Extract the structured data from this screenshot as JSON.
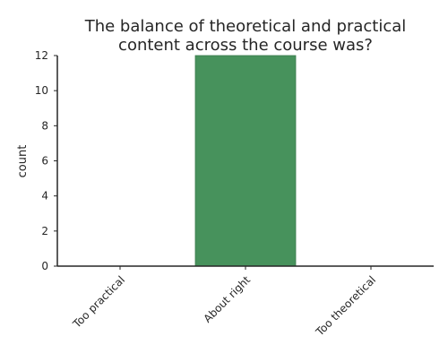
{
  "chart_data": {
    "type": "bar",
    "title_lines": [
      "The balance of theoretical and practical",
      "content across the course was?"
    ],
    "xlabel": "",
    "ylabel": "count",
    "categories": [
      "Too practical",
      "About right",
      "Too theoretical"
    ],
    "values": [
      0,
      12,
      0
    ],
    "ylim": [
      0,
      12
    ],
    "yticks": [
      0,
      2,
      4,
      6,
      8,
      10,
      12
    ],
    "grid": false,
    "bar_color": "#47925c",
    "bar_edge_color": "#3b7a4d",
    "axis_color": "#262626"
  }
}
